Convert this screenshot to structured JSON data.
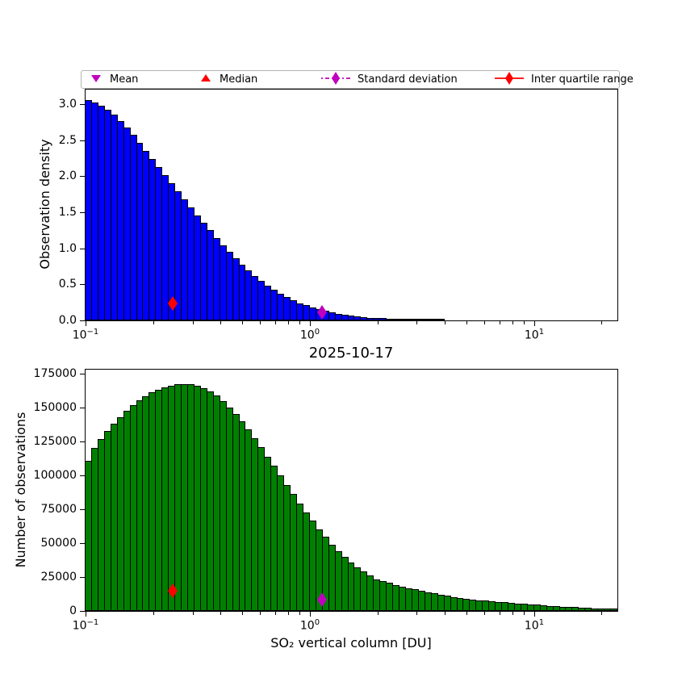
{
  "title": "2025-10-17",
  "legend": {
    "items": [
      {
        "label": "Mean",
        "symbol": "triangle-down",
        "color": "#BF00BF"
      },
      {
        "label": "Median",
        "symbol": "triangle-up",
        "color": "#FF0000"
      },
      {
        "label": "Standard deviation",
        "symbol": "diamond-dashed",
        "color": "#BF00BF"
      },
      {
        "label": "Inter quartile range",
        "symbol": "diamond-solid",
        "color": "#FF0000"
      }
    ]
  },
  "chart_data": [
    {
      "type": "bar",
      "name": "observation-density-histogram",
      "title": "",
      "ylabel": "Observation density",
      "xlabel": "",
      "bar_color": "#0000FF",
      "bar_edge_color": "#000000",
      "x_scale": "log",
      "x_range": [
        0.1,
        23.5
      ],
      "bins_per_decade": 35,
      "ylim": [
        0,
        3.2
      ],
      "yticks": [
        "0.0",
        "0.5",
        "1.0",
        "1.5",
        "2.0",
        "2.5",
        "3.0"
      ],
      "ytick_values": [
        0,
        0.5,
        1.0,
        1.5,
        2.0,
        2.5,
        3.0
      ],
      "xticks": [
        {
          "v": 0.1,
          "base": "10",
          "exp": "−1"
        },
        {
          "v": 1,
          "base": "10",
          "exp": "0"
        },
        {
          "v": 10,
          "base": "10",
          "exp": "1"
        }
      ],
      "values": [
        3.05,
        3.02,
        2.98,
        2.92,
        2.85,
        2.76,
        2.67,
        2.57,
        2.46,
        2.35,
        2.24,
        2.13,
        2.01,
        1.9,
        1.79,
        1.68,
        1.57,
        1.46,
        1.35,
        1.25,
        1.14,
        1.04,
        0.95,
        0.86,
        0.77,
        0.69,
        0.62,
        0.55,
        0.48,
        0.43,
        0.37,
        0.32,
        0.28,
        0.24,
        0.21,
        0.18,
        0.155,
        0.13,
        0.11,
        0.091,
        0.077,
        0.065,
        0.055,
        0.046,
        0.039,
        0.033,
        0.029,
        0.025,
        0.022,
        0.019,
        0.017,
        0.015,
        0.013,
        0.011,
        0.01,
        0.009,
        0.008,
        0.007,
        0.006,
        0.005,
        0.0045,
        0.0041,
        0.0036,
        0.0032,
        0.0028,
        0.0025,
        0.0022,
        0.0019,
        0.0017,
        0.0015,
        0.0013,
        0.0011,
        0.001,
        0.0008,
        0.0007,
        0.0006,
        0.0005,
        0.0005,
        0.0004,
        0.0003,
        0.0003,
        0.0002,
        0.0002
      ],
      "markers": [
        {
          "name": "median-iqr-marker",
          "color": "#FF0000",
          "x": 0.244,
          "y": 0.23
        },
        {
          "name": "mean-std-marker",
          "color": "#BF00BF",
          "x": 1.13,
          "y": 0.11
        }
      ]
    },
    {
      "type": "bar",
      "name": "observation-count-histogram",
      "title": "2025-10-17",
      "ylabel": "Number of observations",
      "xlabel": "SO₂ vertical column [DU]",
      "bar_color": "#008000",
      "bar_edge_color": "#000000",
      "x_scale": "log",
      "x_range": [
        0.1,
        23.5
      ],
      "bins_per_decade": 35,
      "ylim": [
        0,
        178000
      ],
      "yticks": [
        "0",
        "25000",
        "50000",
        "75000",
        "100000",
        "125000",
        "150000",
        "175000"
      ],
      "ytick_values": [
        0,
        25000,
        50000,
        75000,
        100000,
        125000,
        150000,
        175000
      ],
      "xticks": [
        {
          "v": 0.1,
          "base": "10",
          "exp": "−1"
        },
        {
          "v": 1,
          "base": "10",
          "exp": "0"
        },
        {
          "v": 10,
          "base": "10",
          "exp": "1"
        }
      ],
      "values": [
        111000,
        120400,
        126800,
        132700,
        138200,
        143100,
        147700,
        151700,
        155300,
        158400,
        161100,
        163300,
        165100,
        166300,
        167100,
        167500,
        167300,
        166300,
        164500,
        162000,
        158800,
        154900,
        150300,
        145200,
        139700,
        133700,
        127300,
        120700,
        113900,
        106900,
        99900,
        93000,
        86100,
        79300,
        72700,
        66400,
        60300,
        54500,
        49000,
        44100,
        39700,
        35800,
        32200,
        29000,
        26100,
        23500,
        22000,
        20600,
        19300,
        18100,
        16900,
        15800,
        14800,
        13800,
        12900,
        12000,
        11200,
        10400,
        9700,
        9000,
        8500,
        8000,
        7500,
        7100,
        6700,
        6300,
        5900,
        5600,
        5300,
        5000,
        4600,
        4200,
        3800,
        3500,
        3200,
        2900,
        2700,
        2400,
        2200,
        2000,
        1900,
        1700,
        1600
      ],
      "markers": [
        {
          "name": "median-iqr-marker",
          "color": "#FF0000",
          "x": 0.244,
          "y": 14900
        },
        {
          "name": "mean-std-marker",
          "color": "#BF00BF",
          "x": 1.13,
          "y": 8300
        }
      ]
    }
  ]
}
